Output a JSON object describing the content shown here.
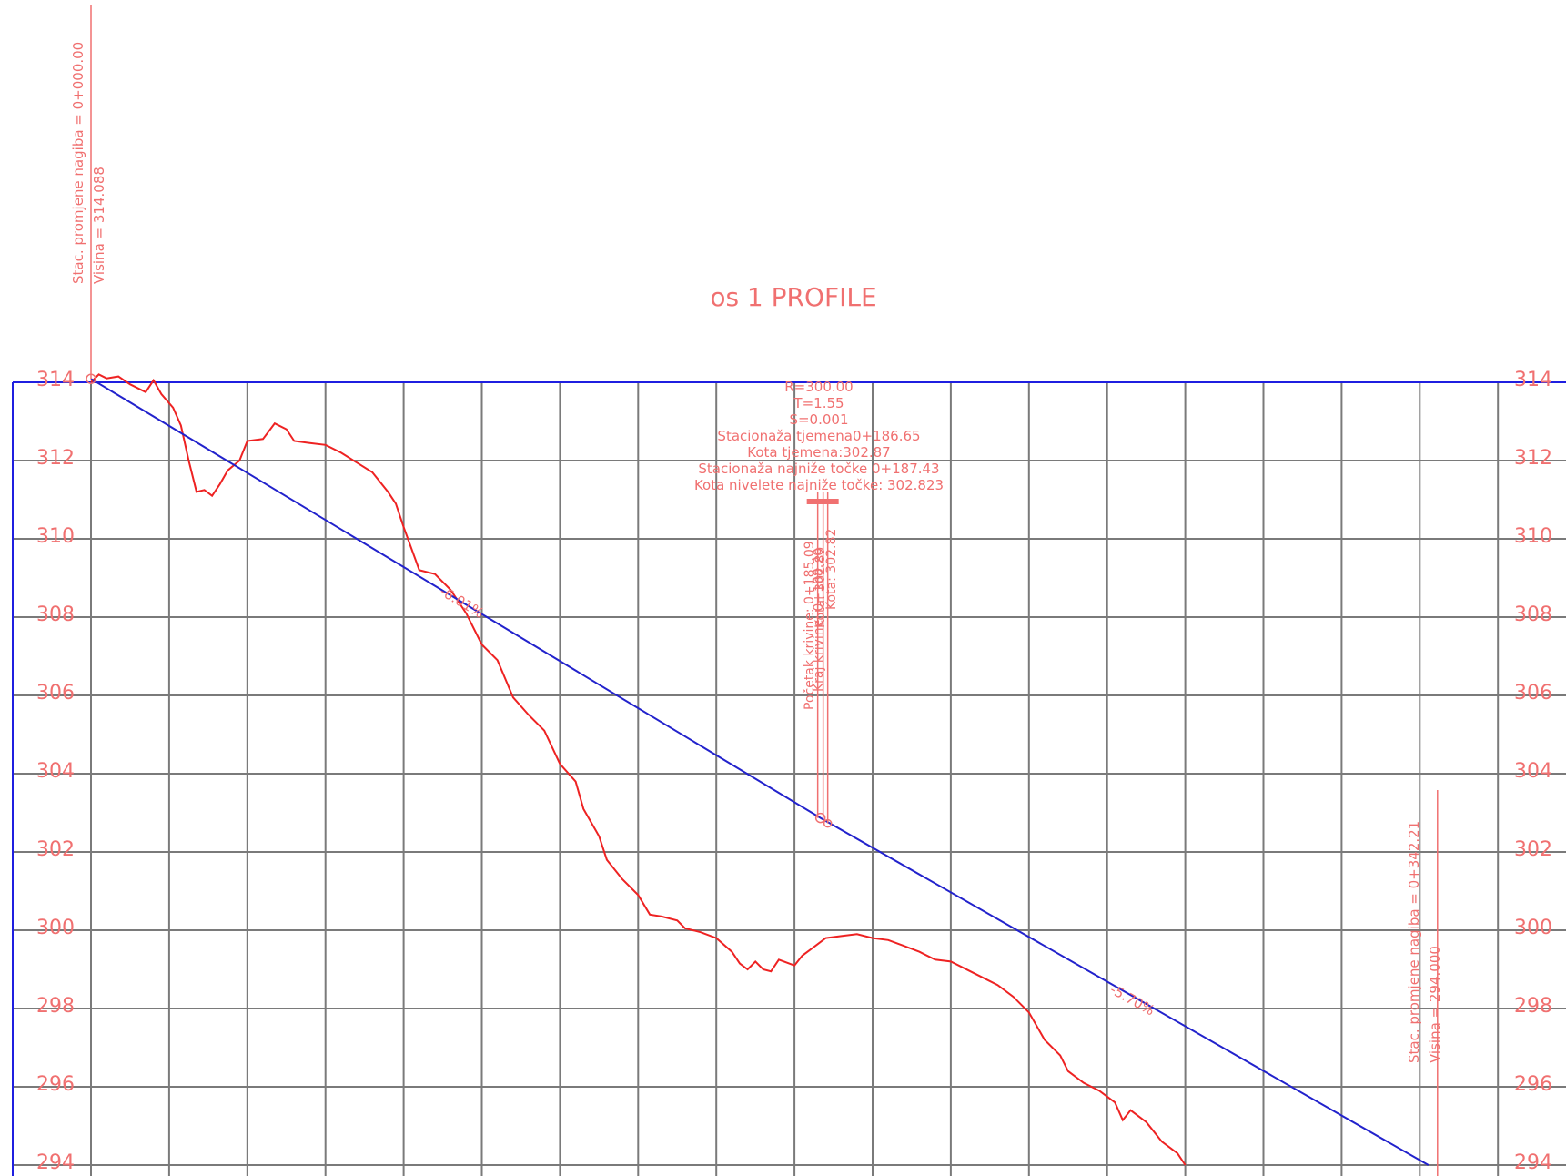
{
  "chart_data": {
    "type": "line",
    "title": "os 1 PROFILE",
    "x": {
      "min": 0,
      "max": 360,
      "step": 20
    },
    "ylim": [
      294,
      314
    ],
    "yticks": [
      314,
      312,
      310,
      308,
      306,
      304,
      302,
      300,
      298,
      296,
      294
    ],
    "grid": true,
    "series": [
      {
        "role": "terrain",
        "color": "#ee2222",
        "points": [
          [
            0,
            314.0
          ],
          [
            2,
            314.2
          ],
          [
            4,
            314.1
          ],
          [
            7,
            314.15
          ],
          [
            10,
            313.95
          ],
          [
            14,
            313.75
          ],
          [
            16,
            314.05
          ],
          [
            18,
            313.7
          ],
          [
            21,
            313.35
          ],
          [
            23,
            312.9
          ],
          [
            25,
            312.0
          ],
          [
            27,
            311.2
          ],
          [
            29,
            311.25
          ],
          [
            31,
            311.1
          ],
          [
            33,
            311.4
          ],
          [
            35,
            311.75
          ],
          [
            38,
            312.0
          ],
          [
            40,
            312.5
          ],
          [
            44,
            312.55
          ],
          [
            47,
            312.95
          ],
          [
            50,
            312.8
          ],
          [
            52,
            312.5
          ],
          [
            56,
            312.45
          ],
          [
            60,
            312.4
          ],
          [
            64,
            312.2
          ],
          [
            68,
            311.95
          ],
          [
            72,
            311.7
          ],
          [
            76,
            311.2
          ],
          [
            78,
            310.9
          ],
          [
            80,
            310.3
          ],
          [
            84,
            309.2
          ],
          [
            88,
            309.1
          ],
          [
            92,
            308.7
          ],
          [
            96,
            308.1
          ],
          [
            100,
            307.3
          ],
          [
            104,
            306.9
          ],
          [
            108,
            305.95
          ],
          [
            112,
            305.5
          ],
          [
            116,
            305.1
          ],
          [
            120,
            304.25
          ],
          [
            124,
            303.8
          ],
          [
            126,
            303.1
          ],
          [
            130,
            302.4
          ],
          [
            132,
            301.8
          ],
          [
            136,
            301.3
          ],
          [
            140,
            300.9
          ],
          [
            143,
            300.4
          ],
          [
            146,
            300.35
          ],
          [
            150,
            300.25
          ],
          [
            152,
            300.05
          ],
          [
            156,
            299.95
          ],
          [
            160,
            299.8
          ],
          [
            164,
            299.45
          ],
          [
            166,
            299.15
          ],
          [
            168,
            299.0
          ],
          [
            170,
            299.2
          ],
          [
            172,
            299.0
          ],
          [
            174,
            298.95
          ],
          [
            176,
            299.25
          ],
          [
            180,
            299.1
          ],
          [
            182,
            299.35
          ],
          [
            186,
            299.65
          ],
          [
            188,
            299.8
          ],
          [
            192,
            299.85
          ],
          [
            196,
            299.9
          ],
          [
            200,
            299.8
          ],
          [
            204,
            299.75
          ],
          [
            208,
            299.6
          ],
          [
            212,
            299.45
          ],
          [
            216,
            299.25
          ],
          [
            220,
            299.2
          ],
          [
            226,
            298.9
          ],
          [
            232,
            298.6
          ],
          [
            236,
            298.3
          ],
          [
            240,
            297.9
          ],
          [
            244,
            297.2
          ],
          [
            248,
            296.8
          ],
          [
            250,
            296.4
          ],
          [
            254,
            296.1
          ],
          [
            258,
            295.9
          ],
          [
            262,
            295.6
          ],
          [
            264,
            295.15
          ],
          [
            266,
            295.4
          ],
          [
            270,
            295.1
          ],
          [
            274,
            294.6
          ],
          [
            278,
            294.3
          ],
          [
            280,
            294.0
          ]
        ]
      },
      {
        "role": "grade line",
        "color": "#2222cc",
        "points": [
          [
            0,
            314.088
          ],
          [
            186.65,
            302.87
          ],
          [
            342.21,
            294.0
          ]
        ]
      }
    ],
    "annotations": {
      "grade1": "-6.01%",
      "grade2": "-5.70%",
      "start_stac": "Stac. promjene nagiba = 0+000.00",
      "start_visina": "Visina =   314.088",
      "end_stac": "Stac. promjene nagiba = 0+342.21",
      "end_visina": "Visina =   294.000",
      "curve_info": [
        "R=300.00",
        "T=1.55",
        "S=0.001",
        "Stacionaža tjemena0+186.65",
        "Kota tjemena:302.87",
        "Stacionaža najniže točke 0+187.43",
        "Kota nivelete najniže točke:  302.823"
      ],
      "curve_start": "Početak krivine: 0+185.09",
      "curve_start_kota": "Kota: 302.89",
      "curve_end": "Kraj krivine: 0+188.20",
      "curve_end_kota": "Kota: 302.82"
    }
  }
}
